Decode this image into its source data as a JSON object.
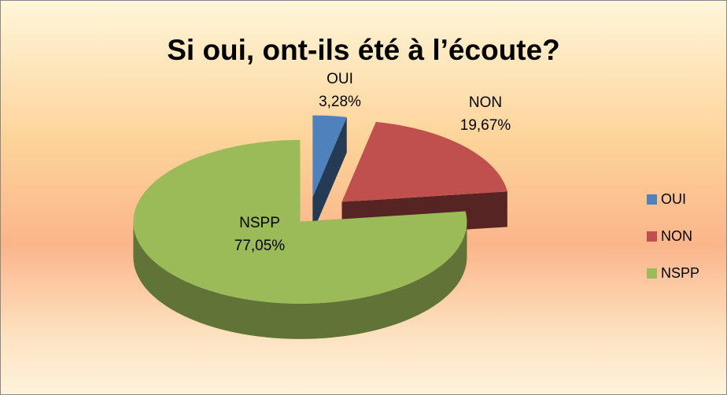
{
  "chart_data": {
    "type": "pie3d",
    "title": "Si oui, ont-ils été à l’écoute?",
    "categories": [
      "OUI",
      "NON",
      "NSPP"
    ],
    "values": [
      3.28,
      19.67,
      77.05
    ],
    "value_labels": [
      "3,28%",
      "19,67%",
      "77,05%"
    ],
    "colors": [
      "#4f81bd",
      "#c0504d",
      "#9bbb59"
    ],
    "legend": "right"
  }
}
